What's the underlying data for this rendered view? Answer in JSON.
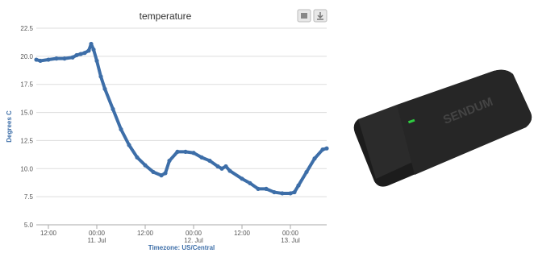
{
  "chart_data": {
    "type": "line",
    "title": "temperature",
    "y_label": "Degrees C",
    "x_label": "Timezone: US/Central",
    "xlim": [
      -3,
      69
    ],
    "xticks": [
      {
        "value": 0,
        "label": "12:00"
      },
      {
        "value": 12,
        "label": "00:00",
        "date": "11. Jul"
      },
      {
        "value": 24,
        "label": "12:00"
      },
      {
        "value": 36,
        "label": "00:00",
        "date": "12. Jul"
      },
      {
        "value": 48,
        "label": "12:00"
      },
      {
        "value": 60,
        "label": "00:00",
        "date": "13. Jul"
      }
    ],
    "ylim": [
      5,
      22.5
    ],
    "yticks": [
      {
        "value": 5,
        "label": "5.0"
      },
      7.5,
      {
        "value": 10,
        "label": "10.0"
      },
      12.5,
      {
        "value": 15,
        "label": "15.0"
      },
      17.5,
      {
        "value": 20,
        "label": "20.0"
      },
      22.5
    ],
    "grid": true,
    "series": [
      {
        "name": "temperature",
        "color": "#3d6ea8",
        "x": [
          -3,
          -2,
          0,
          2,
          4,
          6,
          7,
          8,
          9,
          10,
          10.6,
          11.2,
          12,
          13,
          14,
          16,
          18,
          20,
          22,
          24,
          26,
          28,
          29,
          30,
          32,
          34,
          36,
          38,
          40,
          42,
          43,
          44,
          45,
          48,
          50,
          52,
          54,
          56,
          58,
          60,
          61,
          62,
          64,
          66,
          68,
          69
        ],
        "values": [
          19.7,
          19.6,
          19.7,
          19.8,
          19.8,
          19.9,
          20.1,
          20.2,
          20.3,
          20.5,
          21.1,
          20.6,
          19.6,
          18.2,
          17.1,
          15.3,
          13.5,
          12.1,
          11.0,
          10.3,
          9.7,
          9.4,
          9.6,
          10.7,
          11.5,
          11.5,
          11.4,
          11.0,
          10.7,
          10.2,
          10.0,
          10.2,
          9.8,
          9.1,
          8.7,
          8.2,
          8.2,
          7.9,
          7.8,
          7.8,
          7.9,
          8.5,
          9.7,
          10.9,
          11.7,
          11.8
        ]
      }
    ]
  },
  "device": {
    "label": "SENDUM"
  }
}
